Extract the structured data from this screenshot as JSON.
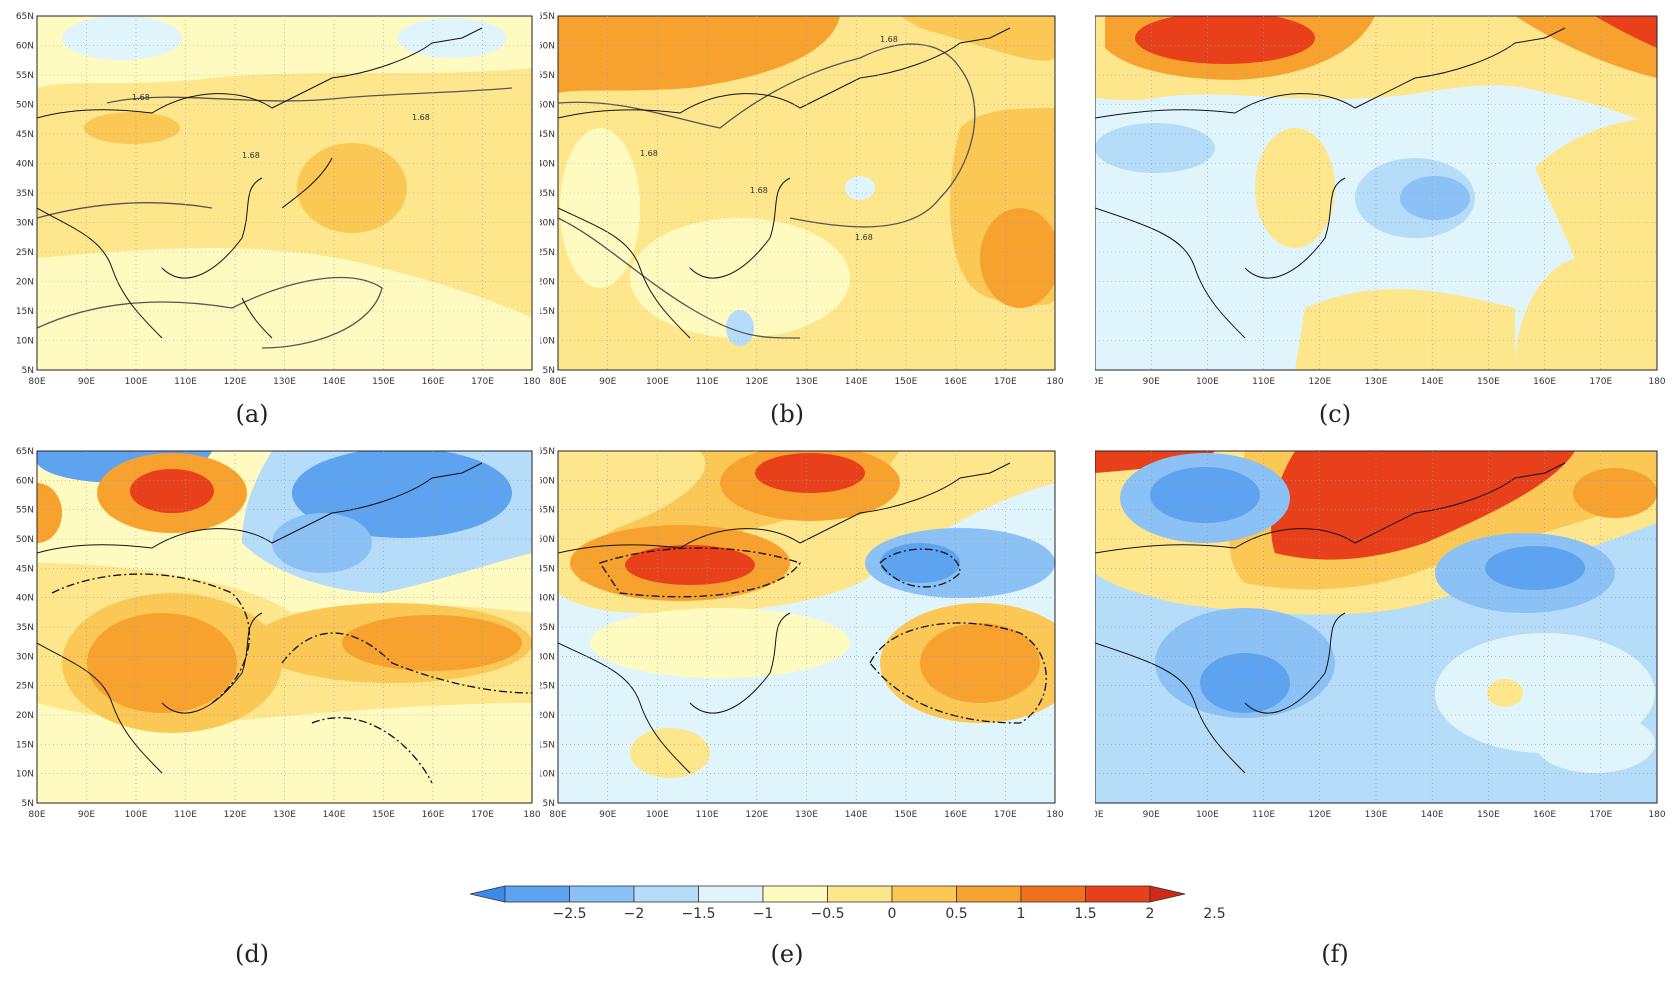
{
  "figure": {
    "panels": [
      {
        "id": "a",
        "caption": "(a)",
        "contour_label": "1.68",
        "contour_style": "solid",
        "palette_key": "a"
      },
      {
        "id": "b",
        "caption": "(b)",
        "contour_label": "1.68",
        "contour_style": "solid",
        "palette_key": "b"
      },
      {
        "id": "c",
        "caption": "(c)",
        "contour_label": "",
        "contour_style": "none",
        "palette_key": "c"
      },
      {
        "id": "d",
        "caption": "(d)",
        "contour_label": "",
        "contour_style": "dashdot",
        "palette_key": "d"
      },
      {
        "id": "e",
        "caption": "(e)",
        "contour_label": "",
        "contour_style": "dashdot",
        "palette_key": "e"
      },
      {
        "id": "f",
        "caption": "(f)",
        "contour_label": "",
        "contour_style": "none",
        "palette_key": "f"
      }
    ],
    "lon_ticks": [
      "80E",
      "90E",
      "100E",
      "110E",
      "120E",
      "130E",
      "140E",
      "150E",
      "160E",
      "170E",
      "180"
    ],
    "lat_ticks": [
      "65N",
      "60N",
      "55N",
      "50N",
      "45N",
      "40N",
      "35N",
      "30N",
      "25N",
      "20N",
      "15N",
      "10N",
      "5N"
    ],
    "extent": {
      "lon_min": 80,
      "lon_max": 180,
      "lat_min": 5,
      "lat_max": 65
    }
  },
  "colorbar": {
    "ticks": [
      "−2.5",
      "−2",
      "−1.5",
      "−1",
      "−0.5",
      "0",
      "0.5",
      "1",
      "1.5",
      "2",
      "2.5"
    ],
    "colors": [
      "#3a8bea",
      "#5ea3f0",
      "#8cc1f5",
      "#b5dcf8",
      "#dff5fb",
      "#fffabf",
      "#fde68c",
      "#fbc856",
      "#f7a22e",
      "#f2701c",
      "#e8401a",
      "#d12818"
    ]
  }
}
